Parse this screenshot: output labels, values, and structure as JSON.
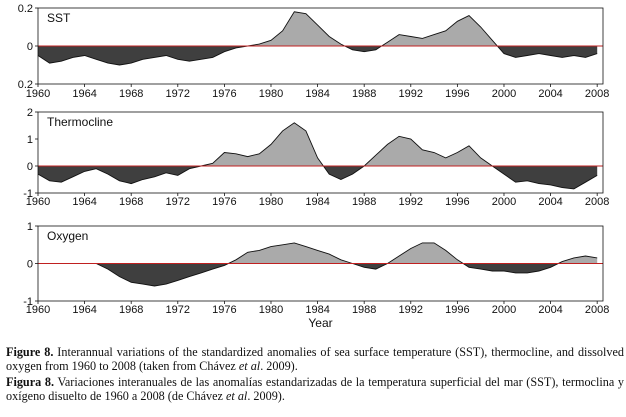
{
  "chart_data": [
    {
      "type": "area",
      "panel_label": "SST",
      "x": [
        1960,
        1961,
        1962,
        1963,
        1964,
        1965,
        1966,
        1967,
        1968,
        1969,
        1970,
        1971,
        1972,
        1973,
        1974,
        1975,
        1976,
        1977,
        1978,
        1979,
        1980,
        1981,
        1982,
        1983,
        1984,
        1985,
        1986,
        1987,
        1988,
        1989,
        1990,
        1991,
        1992,
        1993,
        1994,
        1995,
        1996,
        1997,
        1998,
        1999,
        2000,
        2001,
        2002,
        2003,
        2004,
        2005,
        2006,
        2007,
        2008
      ],
      "values": [
        -0.05,
        -0.09,
        -0.08,
        -0.06,
        -0.05,
        -0.07,
        -0.09,
        -0.1,
        -0.09,
        -0.07,
        -0.06,
        -0.05,
        -0.07,
        -0.08,
        -0.07,
        -0.06,
        -0.03,
        -0.01,
        0.0,
        0.01,
        0.03,
        0.08,
        0.18,
        0.17,
        0.11,
        0.05,
        0.01,
        -0.02,
        -0.03,
        -0.02,
        0.02,
        0.06,
        0.05,
        0.04,
        0.06,
        0.08,
        0.13,
        0.16,
        0.1,
        0.03,
        -0.04,
        -0.06,
        -0.05,
        -0.04,
        -0.05,
        -0.06,
        -0.05,
        -0.06,
        -0.04
      ],
      "yticks": [
        "0.2",
        "0",
        "0.2"
      ],
      "ylim": [
        -0.2,
        0.2
      ],
      "xticks": [
        "1960",
        "1964",
        "1968",
        "1972",
        "1976",
        "1980",
        "1984",
        "1988",
        "1992",
        "1996",
        "2000",
        "2004",
        "2008"
      ],
      "xlim": [
        1960,
        2008.5
      ]
    },
    {
      "type": "area",
      "panel_label": "Thermocline",
      "x": [
        1960,
        1961,
        1962,
        1963,
        1964,
        1965,
        1966,
        1967,
        1968,
        1969,
        1970,
        1971,
        1972,
        1973,
        1974,
        1975,
        1976,
        1977,
        1978,
        1979,
        1980,
        1981,
        1982,
        1983,
        1984,
        1985,
        1986,
        1987,
        1988,
        1989,
        1990,
        1991,
        1992,
        1993,
        1994,
        1995,
        1996,
        1997,
        1998,
        1999,
        2000,
        2001,
        2002,
        2003,
        2004,
        2005,
        2006,
        2007,
        2008
      ],
      "values": [
        -0.3,
        -0.55,
        -0.6,
        -0.4,
        -0.2,
        -0.1,
        -0.3,
        -0.55,
        -0.65,
        -0.5,
        -0.4,
        -0.25,
        -0.35,
        -0.1,
        0.0,
        0.1,
        0.5,
        0.45,
        0.35,
        0.45,
        0.8,
        1.3,
        1.6,
        1.3,
        0.3,
        -0.3,
        -0.5,
        -0.3,
        0.0,
        0.4,
        0.8,
        1.1,
        1.0,
        0.6,
        0.5,
        0.3,
        0.5,
        0.75,
        0.3,
        0.0,
        -0.3,
        -0.6,
        -0.55,
        -0.65,
        -0.7,
        -0.8,
        -0.85,
        -0.6,
        -0.35
      ],
      "yticks": [
        "2",
        "1",
        "0",
        "-1"
      ],
      "ylim": [
        -1,
        2
      ],
      "xticks": [
        "1960",
        "1964",
        "1968",
        "1972",
        "1976",
        "1980",
        "1984",
        "1988",
        "1992",
        "1996",
        "2000",
        "2004",
        "2008"
      ],
      "xlim": [
        1960,
        2008.5
      ]
    },
    {
      "type": "area",
      "panel_label": "Oxygen",
      "x": [
        1960,
        1961,
        1962,
        1963,
        1964,
        1965,
        1966,
        1967,
        1968,
        1969,
        1970,
        1971,
        1972,
        1973,
        1974,
        1975,
        1976,
        1977,
        1978,
        1979,
        1980,
        1981,
        1982,
        1983,
        1984,
        1985,
        1986,
        1987,
        1988,
        1989,
        1990,
        1991,
        1992,
        1993,
        1994,
        1995,
        1996,
        1997,
        1998,
        1999,
        2000,
        2001,
        2002,
        2003,
        2004,
        2005,
        2006,
        2007,
        2008
      ],
      "values": [
        0.0,
        0.0,
        0.0,
        0.0,
        0.0,
        0.0,
        -0.15,
        -0.35,
        -0.5,
        -0.55,
        -0.6,
        -0.55,
        -0.45,
        -0.35,
        -0.25,
        -0.15,
        -0.05,
        0.1,
        0.3,
        0.35,
        0.45,
        0.5,
        0.55,
        0.45,
        0.35,
        0.25,
        0.1,
        0.0,
        -0.1,
        -0.15,
        0.0,
        0.2,
        0.4,
        0.55,
        0.55,
        0.35,
        0.1,
        -0.1,
        -0.15,
        -0.2,
        -0.2,
        -0.25,
        -0.25,
        -0.2,
        -0.1,
        0.05,
        0.15,
        0.2,
        0.15
      ],
      "yticks": [
        "1",
        "0",
        "-1"
      ],
      "ylim": [
        -1,
        1
      ],
      "xticks": [
        "1960",
        "1964",
        "1968",
        "1972",
        "1976",
        "1980",
        "1984",
        "1988",
        "1992",
        "1996",
        "2000",
        "2004",
        "2008"
      ],
      "xlim": [
        1960,
        2008.5
      ],
      "xlabel": "Year"
    }
  ],
  "colors": {
    "positive_fill": "#aaaaaa",
    "negative_fill": "#3f3f3f",
    "zero_line": "#c02020",
    "series_line": "#111111",
    "axes": "#111111"
  },
  "caption": {
    "en_label": "Figure 8.",
    "en_text_1": " Interannual variations of the standardized anomalies of sea surface temperature (SST), thermocline, and dissolved oxygen from 1960 to 2008 (taken from Chávez ",
    "en_etal": "et al",
    "en_text_2": ". 2009).",
    "es_label": "Figura 8.",
    "es_text_1": " Variaciones interanuales de las anomalías estandarizadas de la temperatura superficial del mar (SST), termoclina y oxígeno disuelto de 1960 a 2008 (de Chávez ",
    "es_etal": "et al",
    "es_text_2": ". 2009)."
  }
}
